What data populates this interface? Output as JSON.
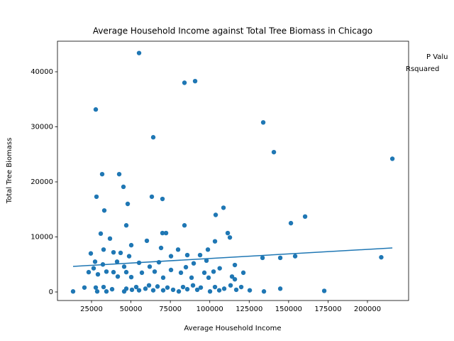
{
  "chart_data": {
    "type": "scatter",
    "title": "Average Household Income against Total Tree Biomass in Chicago",
    "x_label": "Average Household Income",
    "y_label": "Total Tree Biomass",
    "annotations": [
      "P Valu",
      "Rsquared"
    ],
    "color": "#1f77b4",
    "x": [
      55150,
      83950,
      90700,
      27700,
      133900,
      64150,
      140650,
      215800,
      31750,
      42550,
      45250,
      28150,
      63250,
      70000,
      47950,
      33100,
      103750,
      108700,
      160450,
      151450,
      47050,
      83950,
      111400,
      112750,
      30850,
      70000,
      72250,
      36700,
      60100,
      50200,
      103300,
      69100,
      32650,
      38950,
      79900,
      98800,
      24550,
      43450,
      48850,
      75400,
      85750,
      93850,
      154150,
      144700,
      133450,
      208750,
      27250,
      32200,
      41200,
      55150,
      67750,
      89800,
      97900,
      115900,
      45700,
      61900,
      84850,
      106300,
      26350,
      34450,
      38950,
      47050,
      56950,
      65050,
      75400,
      81700,
      96550,
      102400,
      23200,
      29050,
      41650,
      50200,
      70450,
      88450,
      99250,
      121300,
      114100,
      115900,
      13300,
      20500,
      27700,
      28600,
      32650,
      34450,
      38050,
      45700,
      47050,
      50650,
      53350,
      55150,
      59200,
      61450,
      64150,
      66850,
      70450,
      73150,
      76750,
      80350,
      83050,
      85750,
      89350,
      92050,
      94300,
      100150,
      103300,
      106000,
      109150,
      113200,
      116800,
      119950,
      125350,
      134350,
      144700,
      172600
    ],
    "y": [
      43400,
      38000,
      38300,
      33150,
      30800,
      28100,
      25400,
      24200,
      21400,
      21400,
      19100,
      17300,
      17300,
      16900,
      16000,
      14800,
      14000,
      15300,
      13700,
      12500,
      12100,
      12100,
      10700,
      9900,
      10600,
      10700,
      10700,
      9700,
      9300,
      8500,
      9200,
      8000,
      7700,
      7200,
      7700,
      7700,
      7000,
      7100,
      6500,
      6500,
      6700,
      6700,
      6500,
      6200,
      6200,
      6300,
      5500,
      5000,
      5500,
      5300,
      5400,
      5200,
      5700,
      4900,
      4600,
      4600,
      4500,
      4300,
      4300,
      3700,
      3600,
      3600,
      3500,
      3700,
      4000,
      3500,
      3500,
      3700,
      3600,
      3200,
      2800,
      2700,
      2600,
      2600,
      2600,
      3500,
      2800,
      2300,
      100,
      800,
      800,
      100,
      900,
      100,
      500,
      100,
      600,
      400,
      900,
      300,
      600,
      1200,
      300,
      1000,
      300,
      800,
      400,
      100,
      900,
      500,
      1200,
      400,
      800,
      100,
      900,
      300,
      600,
      1200,
      400,
      900,
      300,
      100,
      600,
      200
    ],
    "trendline": {
      "x": [
        13300,
        215800
      ],
      "y": [
        4650,
        8000
      ],
      "color": "#1f77b4"
    },
    "xlim": [
      3400,
      226100
    ],
    "ylim": [
      -1550,
      45550
    ],
    "xticks": [
      25000,
      50000,
      75000,
      100000,
      125000,
      150000,
      175000,
      200000
    ],
    "yticks": [
      0,
      10000,
      20000,
      30000,
      40000
    ],
    "grid": false
  }
}
